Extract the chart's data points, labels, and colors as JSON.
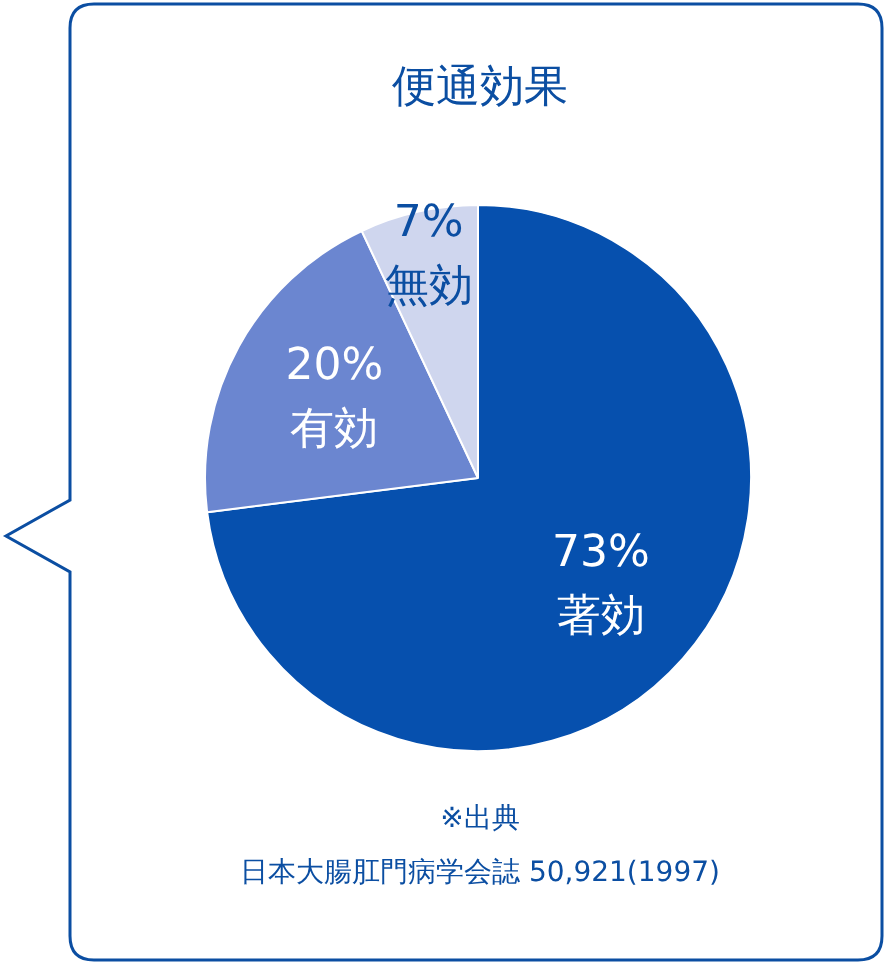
{
  "chart_data": {
    "type": "pie",
    "title": "便通効果",
    "categories": [
      "著効",
      "有効",
      "無効"
    ],
    "values": [
      73,
      20,
      7
    ],
    "colors": [
      "#0650ae",
      "#6b86d0",
      "#cfd6ee"
    ],
    "value_labels": [
      "73%",
      "20%",
      "7%"
    ],
    "legend": false,
    "annotations": [
      "※出典",
      "日本大腸肛門病学会誌 50,921(1997)"
    ]
  }
}
